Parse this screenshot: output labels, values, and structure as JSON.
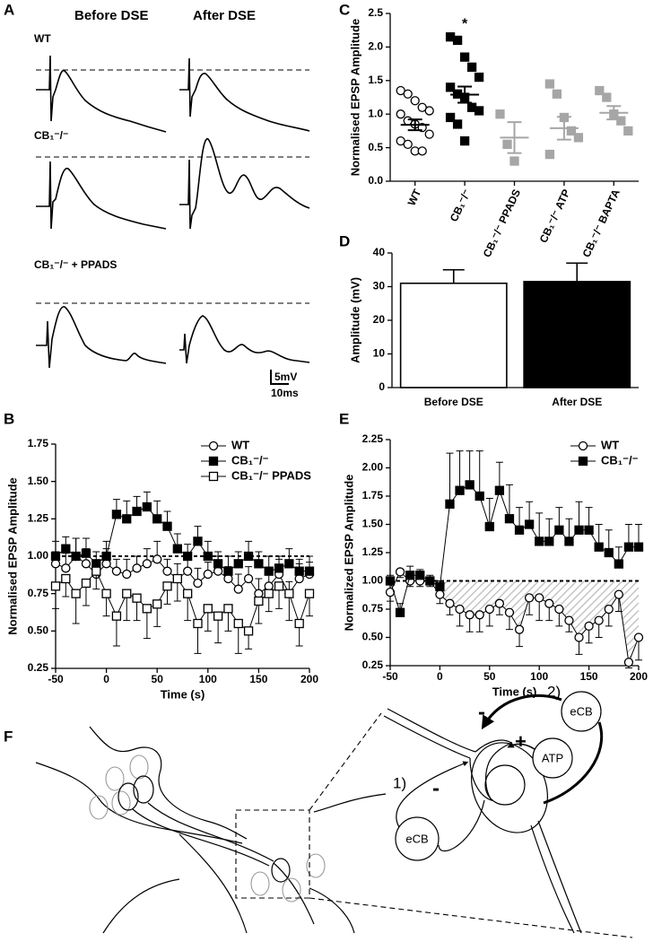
{
  "panel_a": {
    "letter": "A",
    "columns": [
      "Before DSE",
      "After DSE"
    ],
    "rows": [
      "WT",
      "CB₁⁻/⁻",
      "CB₁⁻/⁻ + PPADS"
    ],
    "scale_bar": [
      "5mV",
      "10ms"
    ]
  },
  "panel_f": {
    "letter": "F",
    "steps": [
      "1)",
      "2)"
    ],
    "signals": [
      "eCB",
      "ATP",
      "eCB"
    ],
    "signs": [
      "-",
      "+",
      "-"
    ]
  },
  "chart_data": [
    {
      "type": "scatter",
      "panel": "C",
      "ylabel": "Normalised EPSP Amplitude",
      "annotation": "*",
      "categories": [
        "WT",
        "CB₁⁻/⁻",
        "CB₁⁻/⁻ PPADS",
        "CB₁⁻/⁻ ATP",
        "CB₁⁻/⁻ BAPTA"
      ],
      "points": [
        [
          1.35,
          1.3,
          1.2,
          1.1,
          1.05,
          1.0,
          0.9,
          0.85,
          0.8,
          0.7,
          0.6,
          0.55,
          0.45,
          0.45
        ],
        [
          2.15,
          2.1,
          1.85,
          1.7,
          1.55,
          1.4,
          1.3,
          1.25,
          1.1,
          1.05,
          0.95,
          0.85,
          0.6
        ],
        [
          1.0,
          0.55,
          0.3
        ],
        [
          1.45,
          1.3,
          0.95,
          0.75,
          0.65,
          0.4
        ],
        [
          1.35,
          1.25,
          1.0,
          0.9,
          0.75
        ]
      ],
      "means": [
        0.84,
        1.29,
        0.65,
        0.79,
        1.02
      ],
      "sems": [
        0.08,
        0.12,
        0.23,
        0.17,
        0.1
      ],
      "colors": [
        "#000000",
        "#000000",
        "#a6a6a6",
        "#a6a6a6",
        "#a6a6a6"
      ],
      "markers": [
        "open-circle",
        "square",
        "square",
        "square",
        "square"
      ],
      "ylim": [
        0,
        2.5
      ],
      "yticks": [
        {
          "value": 0,
          "label": "0.0"
        },
        0.5,
        {
          "value": 1,
          "label": "1.0"
        },
        1.5,
        {
          "value": 2,
          "label": "2.0"
        },
        2.5
      ]
    },
    {
      "type": "bar",
      "panel": "D",
      "ylabel": "Amplitude (mV)",
      "categories": [
        "Before DSE",
        "After DSE"
      ],
      "values": [
        31,
        31.5
      ],
      "errors": [
        4,
        5.5
      ],
      "colors": [
        "#ffffff",
        "#000000"
      ],
      "ylim": [
        0,
        40
      ],
      "yticks": [
        0,
        10,
        20,
        30,
        40
      ]
    },
    {
      "type": "line",
      "panel": "B",
      "xlabel": "Time (s)",
      "ylabel": "Normalised EPSP Amplitude",
      "x": [
        -50,
        -40,
        -30,
        -20,
        -10,
        0,
        10,
        20,
        30,
        40,
        50,
        60,
        70,
        80,
        90,
        100,
        110,
        120,
        130,
        140,
        150,
        160,
        170,
        180,
        190,
        200
      ],
      "xlim": [
        -50,
        200
      ],
      "xticks": [
        -50,
        0,
        50,
        100,
        150,
        200
      ],
      "ylim": [
        0.25,
        1.75
      ],
      "yticks": [
        0.25,
        {
          "value": 0.5,
          "label": "0.50"
        },
        0.75,
        {
          "value": 1,
          "label": "1.00"
        },
        1.25,
        {
          "value": 1.5,
          "label": "1.50"
        },
        1.75
      ],
      "reference_line": 1,
      "legend": "upper right",
      "series": [
        {
          "name": "WT",
          "color": "#000000",
          "marker": "open-circle",
          "error_direction": "up",
          "values": [
            0.95,
            0.92,
            1.0,
            0.95,
            0.88,
            0.95,
            0.9,
            0.88,
            0.92,
            0.95,
            0.98,
            0.9,
            0.85,
            0.9,
            0.82,
            0.88,
            0.9,
            0.85,
            0.78,
            0.85,
            0.75,
            0.8,
            0.88,
            0.75,
            0.85,
            0.88
          ],
          "errors": [
            0.08,
            0.1,
            0.12,
            0.1,
            0.08,
            0.1,
            0.08,
            0.1,
            0.08,
            0.1,
            0.12,
            0.08,
            0.1,
            0.08,
            0.1,
            0.08,
            0.1,
            0.08,
            0.1,
            0.08,
            0.1,
            0.08,
            0.1,
            0.08,
            0.1,
            0.08
          ]
        },
        {
          "name": "CB₁⁻/⁻",
          "color": "#000000",
          "marker": "square",
          "error_direction": "up",
          "values": [
            1.0,
            1.05,
            1.0,
            1.02,
            0.95,
            1.0,
            1.28,
            1.25,
            1.3,
            1.33,
            1.25,
            1.2,
            1.05,
            1.0,
            1.1,
            1.0,
            0.95,
            0.9,
            0.95,
            1.0,
            0.95,
            0.9,
            0.92,
            0.95,
            0.9,
            0.9
          ],
          "errors": [
            0.1,
            0.08,
            0.12,
            0.1,
            0.08,
            0.1,
            0.1,
            0.12,
            0.1,
            0.1,
            0.12,
            0.1,
            0.1,
            0.08,
            0.1,
            0.1,
            0.08,
            0.1,
            0.08,
            0.1,
            0.08,
            0.1,
            0.08,
            0.1,
            0.08,
            0.1
          ]
        },
        {
          "name": "CB₁⁻/⁻ PPADS",
          "color": "#000000",
          "marker": "open-square",
          "error_direction": "down",
          "values": [
            0.8,
            0.85,
            0.75,
            0.82,
            0.9,
            0.75,
            0.6,
            0.75,
            0.72,
            0.65,
            0.68,
            0.8,
            0.85,
            0.75,
            0.55,
            0.65,
            0.6,
            0.65,
            0.55,
            0.5,
            0.7,
            0.75,
            0.8,
            0.75,
            0.55,
            0.75
          ],
          "errors": [
            0.15,
            0.12,
            0.2,
            0.15,
            0.12,
            0.15,
            0.2,
            0.18,
            0.15,
            0.2,
            0.15,
            0.12,
            0.15,
            0.18,
            0.2,
            0.15,
            0.18,
            0.15,
            0.2,
            0.12,
            0.15,
            0.12,
            0.15,
            0.18,
            0.15,
            0.15
          ]
        }
      ]
    },
    {
      "type": "line",
      "panel": "E",
      "xlabel": "Time (s)",
      "ylabel": "Normalized EPSP Amplitude",
      "x": [
        -50,
        -40,
        -30,
        -20,
        -10,
        0,
        10,
        20,
        30,
        40,
        50,
        60,
        70,
        80,
        90,
        100,
        110,
        120,
        130,
        140,
        150,
        160,
        170,
        180,
        190,
        200
      ],
      "xlim": [
        -50,
        200
      ],
      "xticks": [
        -50,
        0,
        50,
        100,
        150,
        200
      ],
      "ylim": [
        0.25,
        2.25
      ],
      "yticks": [
        0.25,
        {
          "value": 0.5,
          "label": "0.50"
        },
        0.75,
        {
          "value": 1,
          "label": "1.00"
        },
        1.25,
        {
          "value": 1.5,
          "label": "1.50"
        },
        1.75,
        {
          "value": 2,
          "label": "2.00"
        },
        2.25
      ],
      "reference_line": 1,
      "legend": "upper right",
      "series": [
        {
          "name": "WT",
          "color": "#000000",
          "marker": "open-circle",
          "error_direction": "down",
          "shade_below_reference": true,
          "values": [
            0.9,
            1.08,
            1.0,
            1.0,
            1.0,
            0.88,
            0.8,
            0.75,
            0.7,
            0.7,
            0.75,
            0.8,
            0.72,
            0.57,
            0.85,
            0.85,
            0.8,
            0.75,
            0.65,
            0.5,
            0.6,
            0.65,
            0.75,
            0.88,
            0.28,
            0.5
          ],
          "errors": [
            0.08,
            0.05,
            0.05,
            0.05,
            0.05,
            0.08,
            0.1,
            0.15,
            0.15,
            0.15,
            0.15,
            0.1,
            0.15,
            0.15,
            0.15,
            0.2,
            0.15,
            0.15,
            0.1,
            0.15,
            0.15,
            0.15,
            0.15,
            0.15,
            0.05,
            0.2
          ]
        },
        {
          "name": "CB₁⁻/⁻",
          "color": "#000000",
          "marker": "square",
          "error_direction": "up",
          "values": [
            1.0,
            0.72,
            1.05,
            1.05,
            1.0,
            0.95,
            1.68,
            1.8,
            1.85,
            1.75,
            1.48,
            1.8,
            1.55,
            1.45,
            1.5,
            1.35,
            1.35,
            1.45,
            1.35,
            1.45,
            1.45,
            1.3,
            1.25,
            1.15,
            1.3,
            1.3
          ],
          "errors": [
            0.05,
            0.08,
            0.08,
            0.05,
            0.05,
            0.05,
            0.45,
            0.35,
            0.3,
            0.4,
            0.25,
            0.25,
            0.3,
            0.2,
            0.2,
            0.25,
            0.2,
            0.2,
            0.2,
            0.25,
            0.2,
            0.2,
            0.2,
            0.15,
            0.2,
            0.2
          ]
        }
      ]
    }
  ]
}
